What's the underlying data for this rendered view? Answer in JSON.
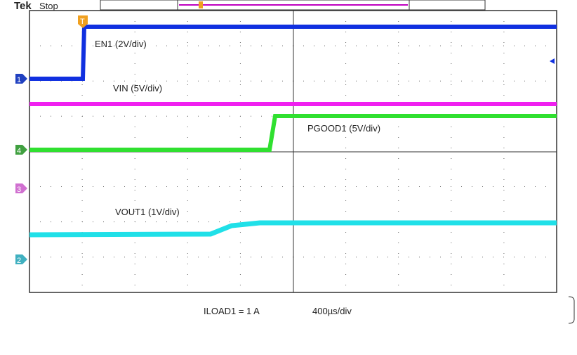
{
  "header": {
    "brand": "Tek",
    "status": "Stop"
  },
  "traces": [
    {
      "label": "EN1 (2V/div)"
    },
    {
      "label": "VIN (5V/div)"
    },
    {
      "label": "PGOOD1 (5V/div)"
    },
    {
      "label": "VOUT1 (1V/div)"
    }
  ],
  "markers": [
    "1",
    "4",
    "3",
    "2",
    "T"
  ],
  "footer": {
    "load": "ILOAD1 = 1 A",
    "timebase": "400µs/div"
  }
}
